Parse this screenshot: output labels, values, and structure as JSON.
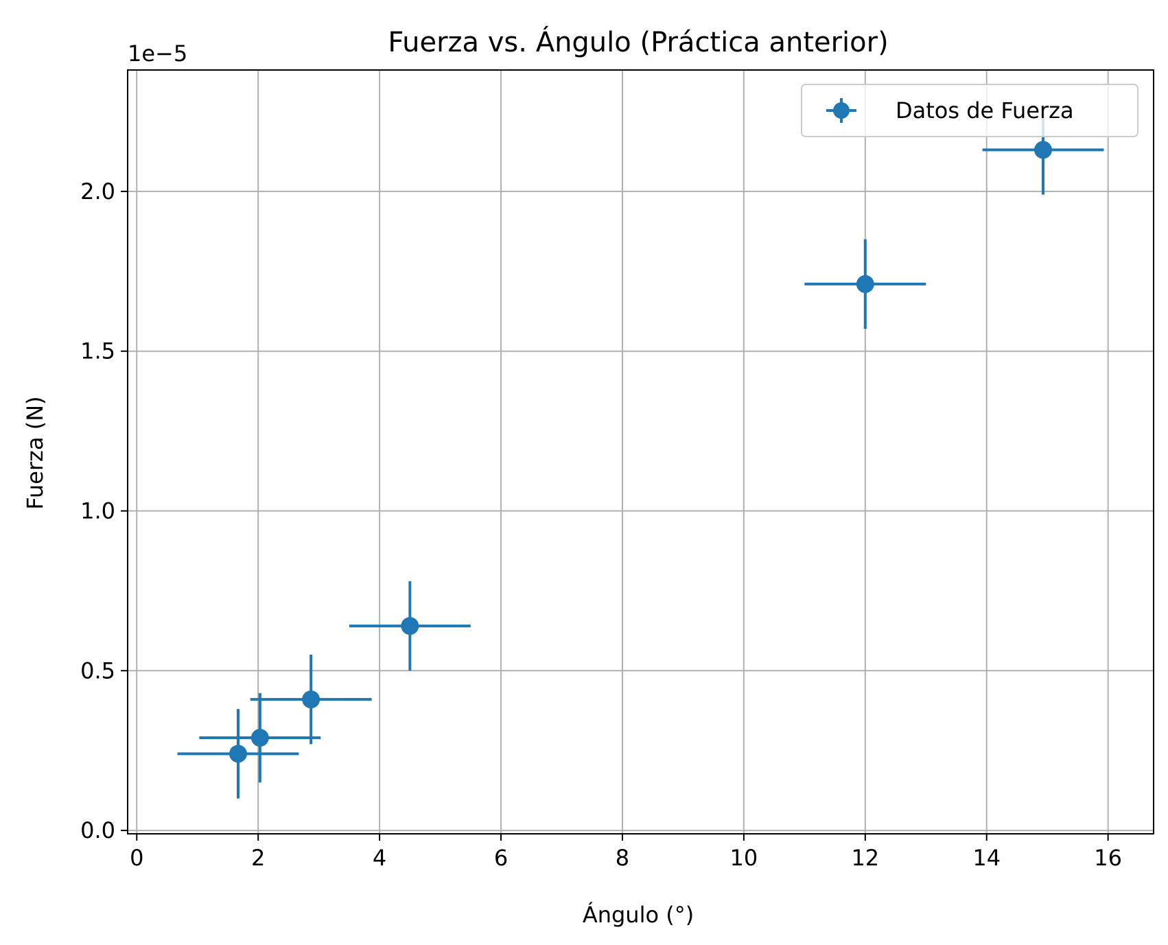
{
  "chart_data": {
    "type": "scatter",
    "title": "Fuerza vs. Ángulo (Práctica anterior)",
    "xlabel": "Ángulo (°)",
    "ylabel": "Fuerza (N)",
    "y_offset_text": "1e−5",
    "y_scale": 1e-05,
    "xlim": [
      -0.15,
      16.75
    ],
    "ylim": [
      -1.06e-07,
      2.38e-05
    ],
    "x_ticks": [
      0,
      2,
      4,
      6,
      8,
      10,
      12,
      14,
      16
    ],
    "y_ticks": [
      0.0,
      0.5,
      1.0,
      1.5,
      2.0
    ],
    "y_tick_labels": [
      "0.0",
      "0.5",
      "1.0",
      "1.5",
      "2.0"
    ],
    "grid": true,
    "legend_position": "top-right",
    "series": [
      {
        "name": "Datos de Fuerza",
        "color": "#1f77b4",
        "marker": "circle",
        "points": [
          {
            "x": 1.67,
            "y": 2.4e-06,
            "xerr": 1.0,
            "yerr": 1.4e-06
          },
          {
            "x": 2.03,
            "y": 2.9e-06,
            "xerr": 1.0,
            "yerr": 1.4e-06
          },
          {
            "x": 2.87,
            "y": 4.1e-06,
            "xerr": 1.0,
            "yerr": 1.4e-06
          },
          {
            "x": 4.5,
            "y": 6.4e-06,
            "xerr": 1.0,
            "yerr": 1.4e-06
          },
          {
            "x": 12.0,
            "y": 1.71e-05,
            "xerr": 1.0,
            "yerr": 1.4e-06
          },
          {
            "x": 14.93,
            "y": 2.13e-05,
            "xerr": 1.0,
            "yerr": 1.4e-06
          }
        ]
      }
    ]
  }
}
